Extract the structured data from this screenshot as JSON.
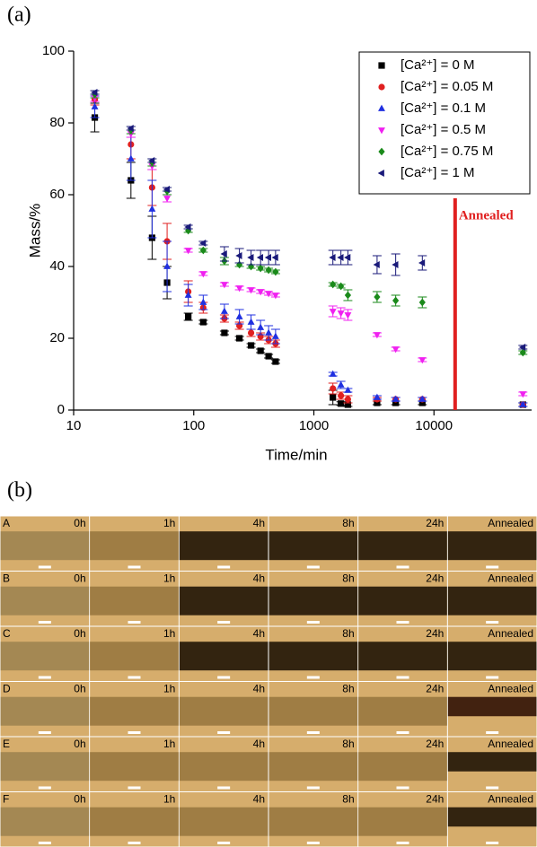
{
  "chart_data": {
    "type": "scatter",
    "panel_label": "(a)",
    "x_label": "Time/min",
    "y_label": "Mass/%",
    "x": [
      15,
      30,
      45,
      60,
      90,
      120,
      180,
      240,
      300,
      360,
      420,
      480,
      1440,
      1680,
      1920,
      3360,
      4800,
      8000,
      55000
    ],
    "x_log": true,
    "xlim": [
      10,
      65000
    ],
    "xticks": [
      10,
      100,
      1000,
      10000
    ],
    "ylim": [
      0,
      100
    ],
    "yticks": [
      0,
      20,
      40,
      60,
      80,
      100
    ],
    "legend": "upper right",
    "series": [
      {
        "name": "[Ca²⁺] = 0 M",
        "color": "#000000",
        "marker": "square",
        "values": [
          81.5,
          64,
          48,
          35.5,
          26,
          24.5,
          21.5,
          20,
          18,
          16.5,
          15,
          13.5,
          3.5,
          1.8,
          1.5,
          2,
          2,
          2,
          1.5
        ],
        "errors": [
          4,
          5,
          6,
          4.5,
          1,
          0.5,
          0.5,
          0.5,
          0.5,
          0.5,
          0.5,
          0.5,
          2,
          0.5,
          0.5,
          0.5,
          0.5,
          0.5,
          0.5
        ]
      },
      {
        "name": "[Ca²⁺] = 0.05 M",
        "color": "#e02020",
        "marker": "circle",
        "values": [
          86.5,
          74,
          62,
          47,
          33,
          28.5,
          25.5,
          23.5,
          21.5,
          20.5,
          19.5,
          18.5,
          6,
          4,
          3,
          3,
          3,
          3,
          1.5
        ],
        "errors": [
          1.5,
          4,
          5,
          5,
          3,
          1.5,
          1,
          1,
          1,
          1,
          1,
          1,
          1.5,
          1,
          1,
          0.5,
          0.5,
          0.5,
          0.5
        ]
      },
      {
        "name": "[Ca²⁺] = 0.1 M",
        "color": "#2030e0",
        "marker": "triangle-up",
        "values": [
          84.5,
          70,
          56,
          40,
          32,
          30,
          27.5,
          26,
          24.5,
          23,
          21.5,
          20.5,
          10,
          7,
          5.5,
          3.5,
          3,
          3,
          1.5
        ],
        "errors": [
          3,
          6,
          8,
          7,
          3,
          2,
          2,
          2,
          2,
          2,
          2,
          2,
          0.5,
          1,
          0.5,
          0.5,
          0.5,
          0.5,
          0.5
        ]
      },
      {
        "name": "[Ca²⁺] = 0.5 M",
        "color": "#f020f0",
        "marker": "triangle-down",
        "values": [
          87,
          77,
          68,
          59,
          44.5,
          38,
          35,
          34,
          33.5,
          33,
          32.5,
          32,
          27.5,
          27,
          26.5,
          21,
          17,
          14,
          4.5
        ],
        "errors": [
          1,
          1,
          1,
          1,
          0.5,
          0.5,
          0.5,
          0.5,
          0.5,
          0.5,
          0.5,
          0.5,
          1.5,
          1.5,
          1.5,
          0.5,
          0.5,
          0.5,
          0.5
        ]
      },
      {
        "name": "[Ca²⁺] = 0.75 M",
        "color": "#1a8a1a",
        "marker": "diamond",
        "values": [
          88,
          78,
          69,
          61,
          50,
          44.5,
          41.5,
          40.5,
          40,
          39.5,
          39,
          38.5,
          35,
          34.5,
          32,
          31.5,
          30.5,
          30,
          16
        ],
        "errors": [
          1,
          1,
          1,
          1,
          0.5,
          0.5,
          1,
          0.5,
          0.5,
          0.5,
          0.5,
          0.5,
          0.5,
          0.5,
          1.5,
          1.5,
          1.5,
          1.5,
          0.5
        ]
      },
      {
        "name": "[Ca²⁺] = 1 M",
        "color": "#1a1a7a",
        "marker": "triangle-left",
        "values": [
          88.5,
          78.5,
          69.5,
          61.5,
          51,
          46.5,
          43.5,
          43,
          42.5,
          42.5,
          42.5,
          42.5,
          42.5,
          42.5,
          42.5,
          40.5,
          40.5,
          41,
          17.5
        ],
        "errors": [
          0.5,
          0.5,
          0.5,
          0.5,
          0.5,
          0.5,
          2,
          2,
          2,
          2,
          2,
          2,
          2,
          2,
          2,
          2.5,
          3,
          2,
          0.5
        ]
      }
    ],
    "annotation": {
      "text": "Annealed",
      "x": 15000,
      "color": "#e02020"
    }
  },
  "images": {
    "panel_label": "(b)",
    "rows": [
      "A",
      "B",
      "C",
      "D",
      "E",
      "F"
    ],
    "columns": [
      "0h",
      "1h",
      "4h",
      "8h",
      "24h",
      "Annealed"
    ]
  }
}
